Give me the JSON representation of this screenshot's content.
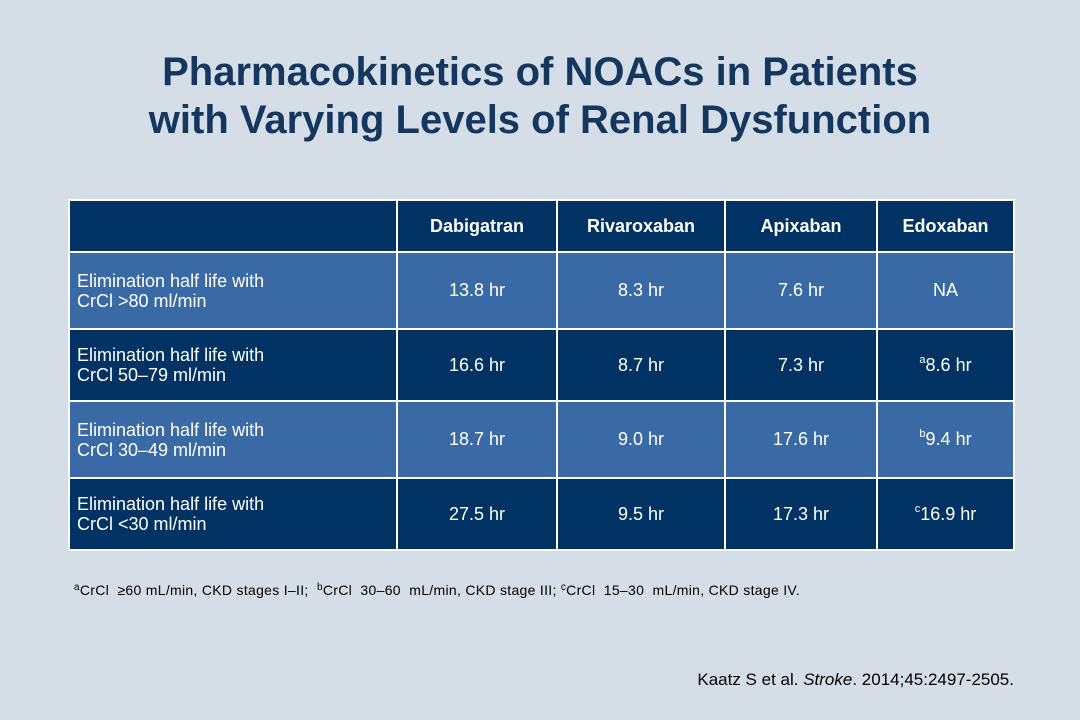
{
  "title": {
    "line1": "Pharmacokinetics of NOACs in Patients",
    "line2": "with Varying Levels of Renal Dysfunction"
  },
  "table": {
    "headers": [
      "",
      "Dabigatran",
      "Rivaroxaban",
      "Apixaban",
      "Edoxaban"
    ],
    "rows": [
      {
        "label_line1": "Elimination half life with",
        "label_line2": "CrCl >80 ml/min",
        "cells": [
          {
            "sup": "",
            "value": "13.8 hr"
          },
          {
            "sup": "",
            "value": "8.3 hr"
          },
          {
            "sup": "",
            "value": "7.6 hr"
          },
          {
            "sup": "",
            "value": "NA"
          }
        ]
      },
      {
        "label_line1": "Elimination half life with",
        "label_line2": "CrCl 50–79 ml/min",
        "cells": [
          {
            "sup": "",
            "value": "16.6 hr"
          },
          {
            "sup": "",
            "value": "8.7 hr"
          },
          {
            "sup": "",
            "value": "7.3 hr"
          },
          {
            "sup": "a",
            "value": "8.6 hr"
          }
        ]
      },
      {
        "label_line1": "Elimination half life with",
        "label_line2": "CrCl 30–49 ml/min",
        "cells": [
          {
            "sup": "",
            "value": "18.7 hr"
          },
          {
            "sup": "",
            "value": "9.0 hr"
          },
          {
            "sup": "",
            "value": "17.6 hr"
          },
          {
            "sup": "b",
            "value": "9.4 hr"
          }
        ]
      },
      {
        "label_line1": "Elimination half life with",
        "label_line2": "CrCl <30 ml/min",
        "cells": [
          {
            "sup": "",
            "value": "27.5 hr"
          },
          {
            "sup": "",
            "value": "9.5 hr"
          },
          {
            "sup": "",
            "value": "17.3 hr"
          },
          {
            "sup": "c",
            "value": "16.9 hr"
          }
        ]
      }
    ]
  },
  "footnotes": {
    "a_mark": "a",
    "a_text": "CrCl  ≥60 mL/min, CKD stages I–II;  ",
    "b_mark": "b",
    "b_text": "CrCl  30–60  mL/min, CKD stage III; ",
    "c_mark": "c",
    "c_text": "CrCl  15–30  mL/min, CKD stage IV."
  },
  "citation": {
    "authors": "Kaatz S et al. ",
    "journal": "Stroke",
    "details": ". 2014;45:2497-2505."
  },
  "colors": {
    "background": "#d5dde7",
    "title": "#14375f",
    "dark_row": "#003363",
    "light_row": "#3a6aa6"
  }
}
